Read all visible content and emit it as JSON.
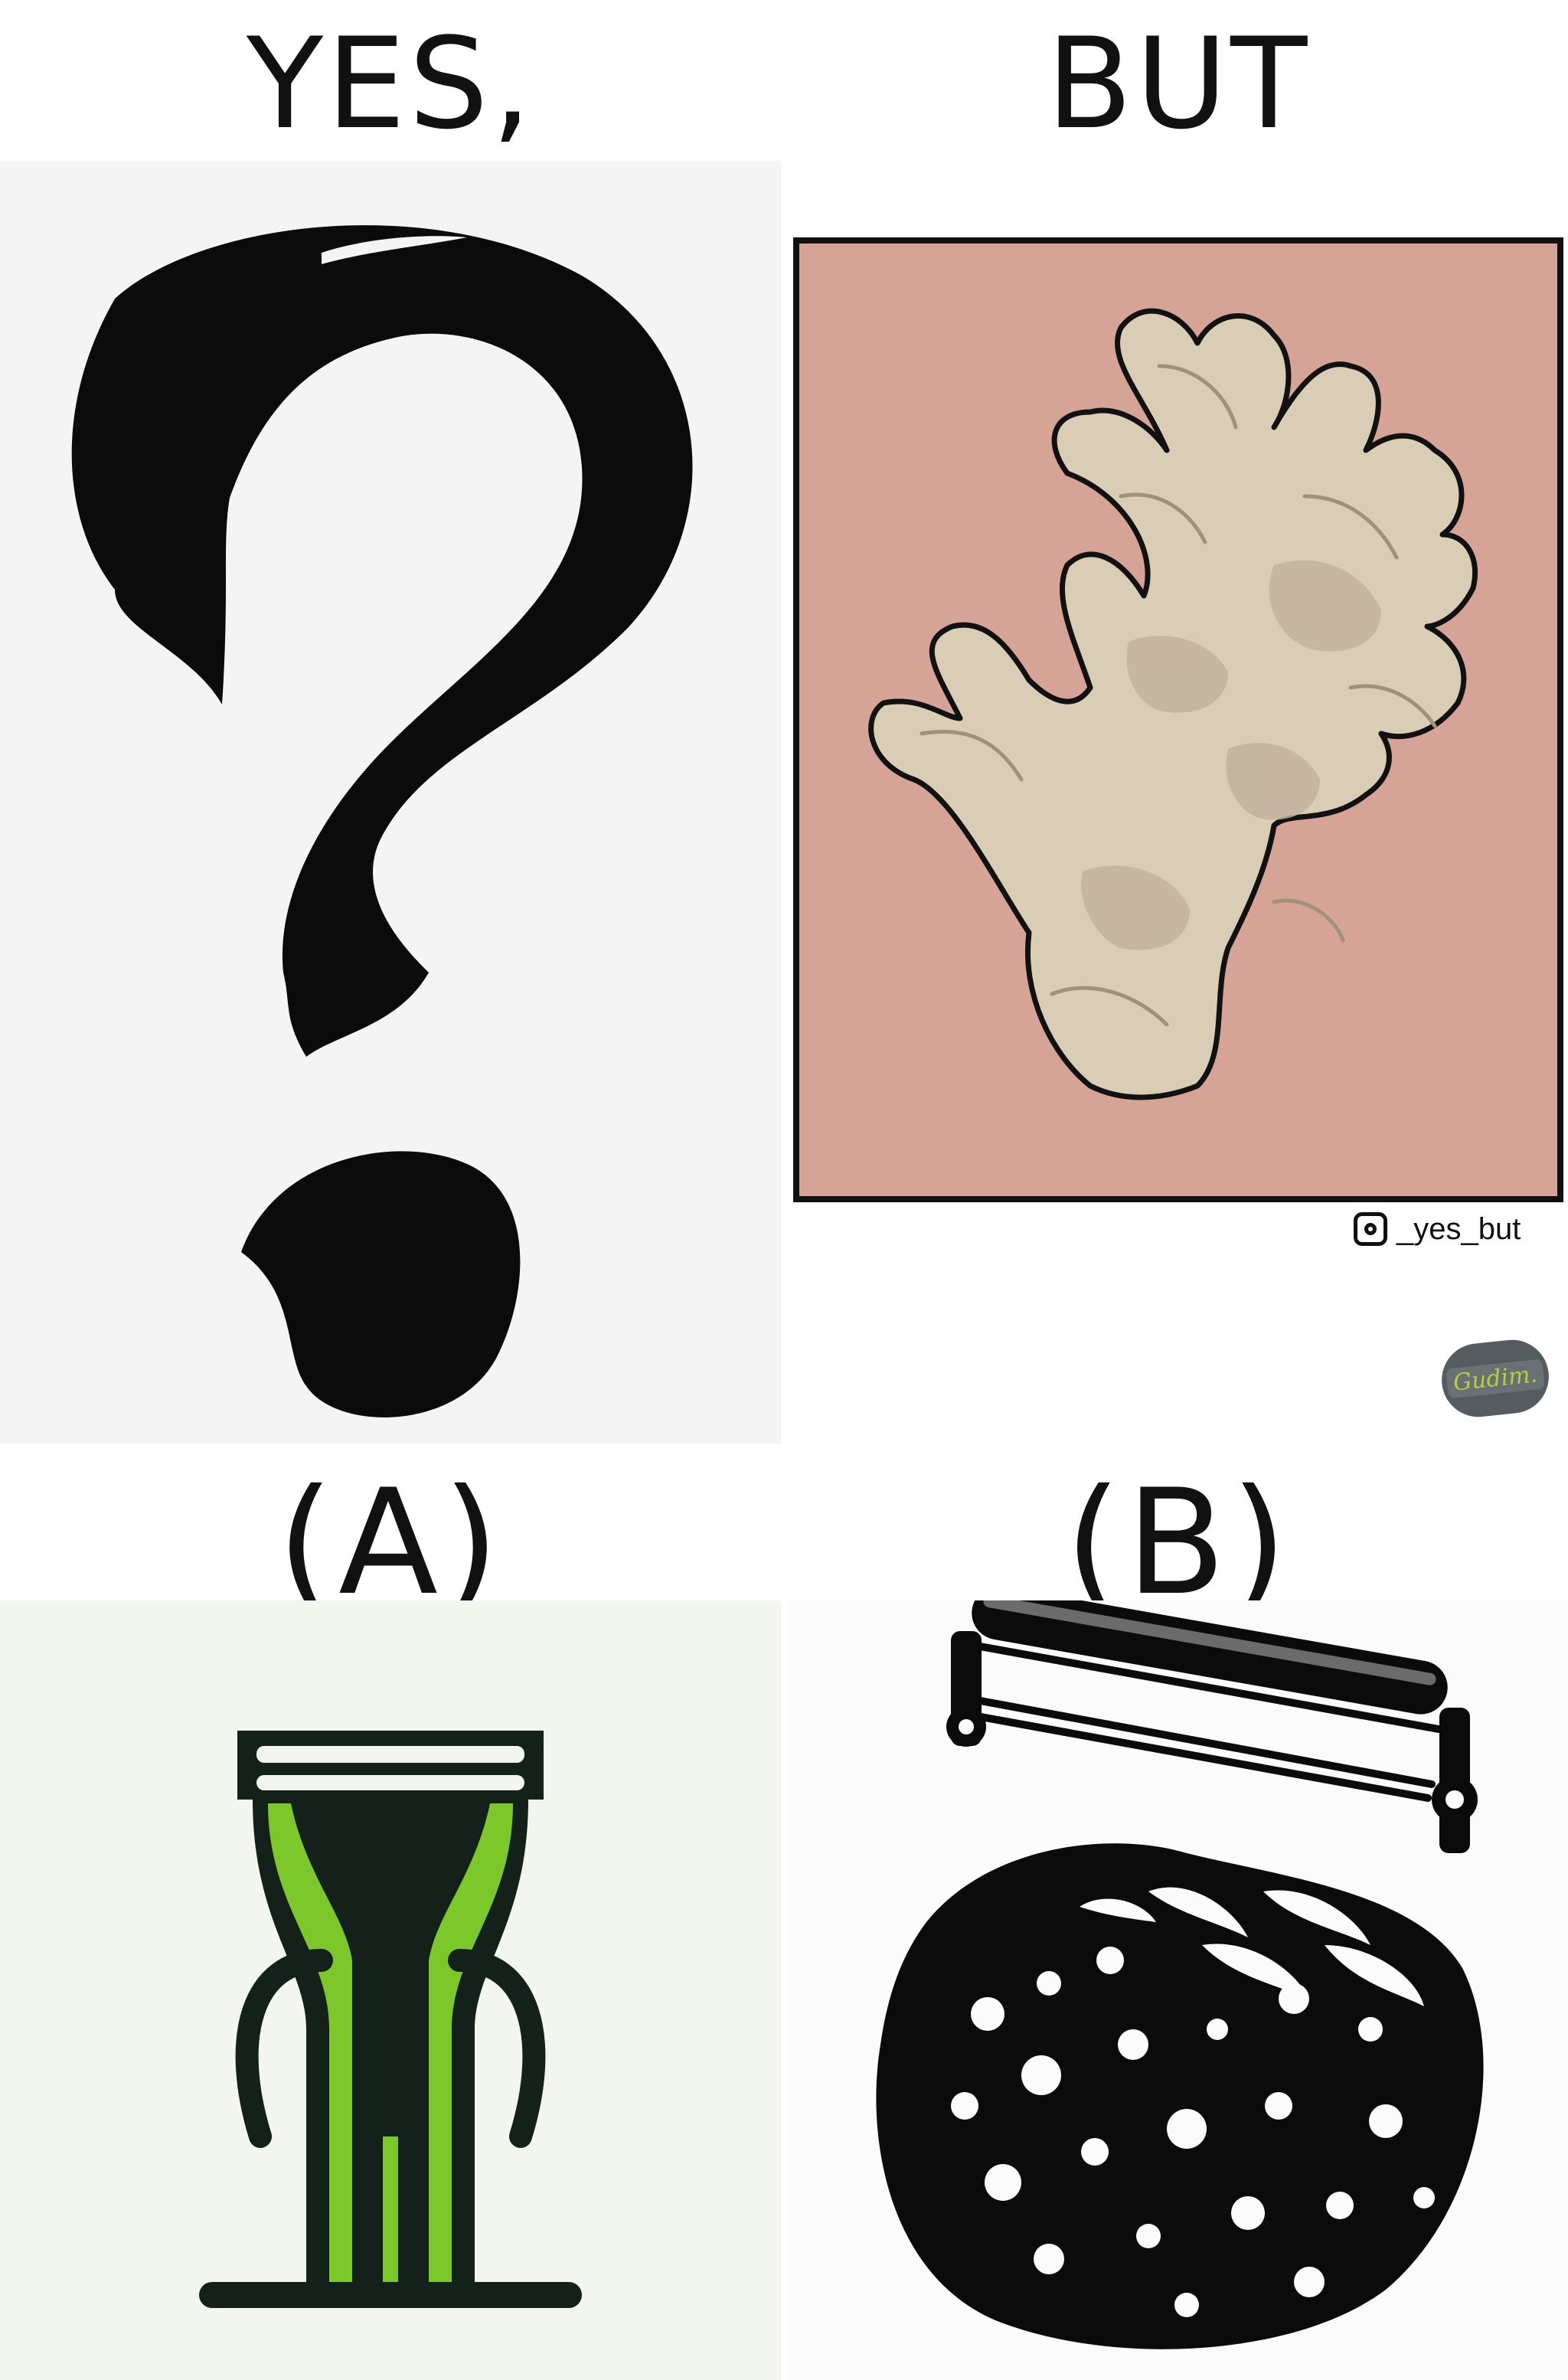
{
  "headings": {
    "left": "YES,",
    "right": "BUT"
  },
  "options": {
    "a": "(A)",
    "b": "(B)"
  },
  "credit": {
    "icon": "instagram-icon",
    "handle": "_yes_but"
  },
  "signature": {
    "text": "Gudim."
  },
  "colors": {
    "panel_a_bg": "#f4f4f4",
    "ginger_bg": "#d6a397",
    "ginger_fill": "#d9cdb6",
    "peeler_green": "#7cc82a",
    "peeler_dark": "#14201a",
    "peeler_bg": "#f3f6ee"
  },
  "images": {
    "question_mark": "brush-question-mark-icon",
    "ginger": "ginger-root-illustration",
    "peeler_person": "peeler-person-icon",
    "grater": "roller-grater-fruit-icon"
  }
}
